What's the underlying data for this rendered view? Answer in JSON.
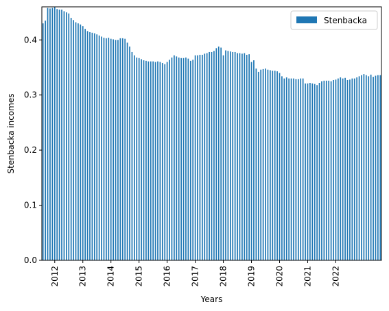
{
  "chart_data": {
    "type": "bar",
    "xlabel": "Years",
    "ylabel": "Stenbacka incomes",
    "ylim": [
      0,
      0.46
    ],
    "yticks": [
      "0.0",
      "0.1",
      "0.2",
      "0.3",
      "0.4"
    ],
    "xtick_labels": [
      "2012",
      "2013",
      "2014",
      "2015",
      "2016",
      "2017",
      "2018",
      "2019",
      "2020",
      "2021",
      "2022"
    ],
    "xtick_first_bar_index": [
      5,
      17,
      29,
      41,
      53,
      65,
      77,
      89,
      101,
      113,
      125
    ],
    "legend": {
      "location": "top-right",
      "entries": [
        "Stenbacka"
      ]
    },
    "grid": false,
    "colors": {
      "bar": "#1f77b4",
      "axis": "#000000",
      "legend_border": "#cccccc"
    },
    "series": [
      {
        "name": "Stenbacka",
        "start": "2011-08",
        "frequency": "monthly",
        "values": [
          0.43,
          0.435,
          0.458,
          0.457,
          0.458,
          0.46,
          0.456,
          0.455,
          0.455,
          0.452,
          0.45,
          0.448,
          0.44,
          0.436,
          0.432,
          0.43,
          0.428,
          0.425,
          0.42,
          0.416,
          0.414,
          0.413,
          0.412,
          0.41,
          0.408,
          0.406,
          0.404,
          0.403,
          0.404,
          0.402,
          0.401,
          0.4,
          0.4,
          0.403,
          0.403,
          0.402,
          0.395,
          0.388,
          0.378,
          0.372,
          0.368,
          0.367,
          0.365,
          0.363,
          0.362,
          0.361,
          0.361,
          0.361,
          0.36,
          0.361,
          0.36,
          0.358,
          0.356,
          0.36,
          0.364,
          0.368,
          0.372,
          0.37,
          0.368,
          0.367,
          0.367,
          0.368,
          0.366,
          0.362,
          0.364,
          0.372,
          0.372,
          0.373,
          0.373,
          0.375,
          0.376,
          0.378,
          0.378,
          0.38,
          0.385,
          0.388,
          0.386,
          0.372,
          0.381,
          0.38,
          0.379,
          0.378,
          0.378,
          0.376,
          0.376,
          0.375,
          0.376,
          0.373,
          0.374,
          0.36,
          0.363,
          0.348,
          0.342,
          0.346,
          0.347,
          0.348,
          0.346,
          0.345,
          0.344,
          0.344,
          0.343,
          0.34,
          0.334,
          0.33,
          0.332,
          0.33,
          0.33,
          0.33,
          0.329,
          0.329,
          0.33,
          0.33,
          0.321,
          0.321,
          0.322,
          0.321,
          0.32,
          0.318,
          0.322,
          0.325,
          0.326,
          0.326,
          0.326,
          0.325,
          0.327,
          0.328,
          0.33,
          0.332,
          0.33,
          0.331,
          0.327,
          0.328,
          0.33,
          0.33,
          0.332,
          0.334,
          0.336,
          0.338,
          0.336,
          0.334,
          0.337,
          0.333,
          0.335,
          0.336,
          0.336
        ]
      }
    ]
  }
}
